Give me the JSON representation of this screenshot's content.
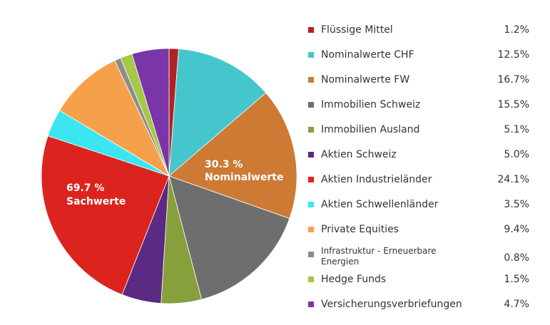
{
  "chart_data": {
    "type": "pie",
    "title": "",
    "group_labels": [
      {
        "percent": "30.3 %",
        "name": "Nominalwerte"
      },
      {
        "percent": "69.7 %",
        "name": "Sachwerte"
      }
    ],
    "slices": [
      {
        "label": "Flüssige Mittel",
        "value": 1.2,
        "display": "1.2%",
        "color": "#b22222"
      },
      {
        "label": "Nominalwerte CHF",
        "value": 12.5,
        "display": "12.5%",
        "color": "#45c6cd"
      },
      {
        "label": "Nominalwerte FW",
        "value": 16.7,
        "display": "16.7%",
        "color": "#cd7a35"
      },
      {
        "label": "Immobilien Schweiz",
        "value": 15.5,
        "display": "15.5%",
        "color": "#6e6e6e"
      },
      {
        "label": "Immobilien Ausland",
        "value": 5.1,
        "display": "5.1%",
        "color": "#87a03c"
      },
      {
        "label": "Aktien Schweiz",
        "value": 5.0,
        "display": "5.0%",
        "color": "#5b2a82"
      },
      {
        "label": "Aktien Industrieländer",
        "value": 24.1,
        "display": "24.1%",
        "color": "#dc231e"
      },
      {
        "label": "Aktien Schwellenländer",
        "value": 3.5,
        "display": "3.5%",
        "color": "#3ce6f0"
      },
      {
        "label": "Private Equities",
        "value": 9.4,
        "display": "9.4%",
        "color": "#f7a04b"
      },
      {
        "label": "Infrastruktur - Erneuerbare Energien",
        "value": 0.8,
        "display": "0.8%",
        "color": "#8c8c8c"
      },
      {
        "label": "Hedge Funds",
        "value": 1.5,
        "display": "1.5%",
        "color": "#a5c846"
      },
      {
        "label": "Versicherungsverbriefungen",
        "value": 4.7,
        "display": "4.7%",
        "color": "#7a35a8"
      }
    ]
  }
}
